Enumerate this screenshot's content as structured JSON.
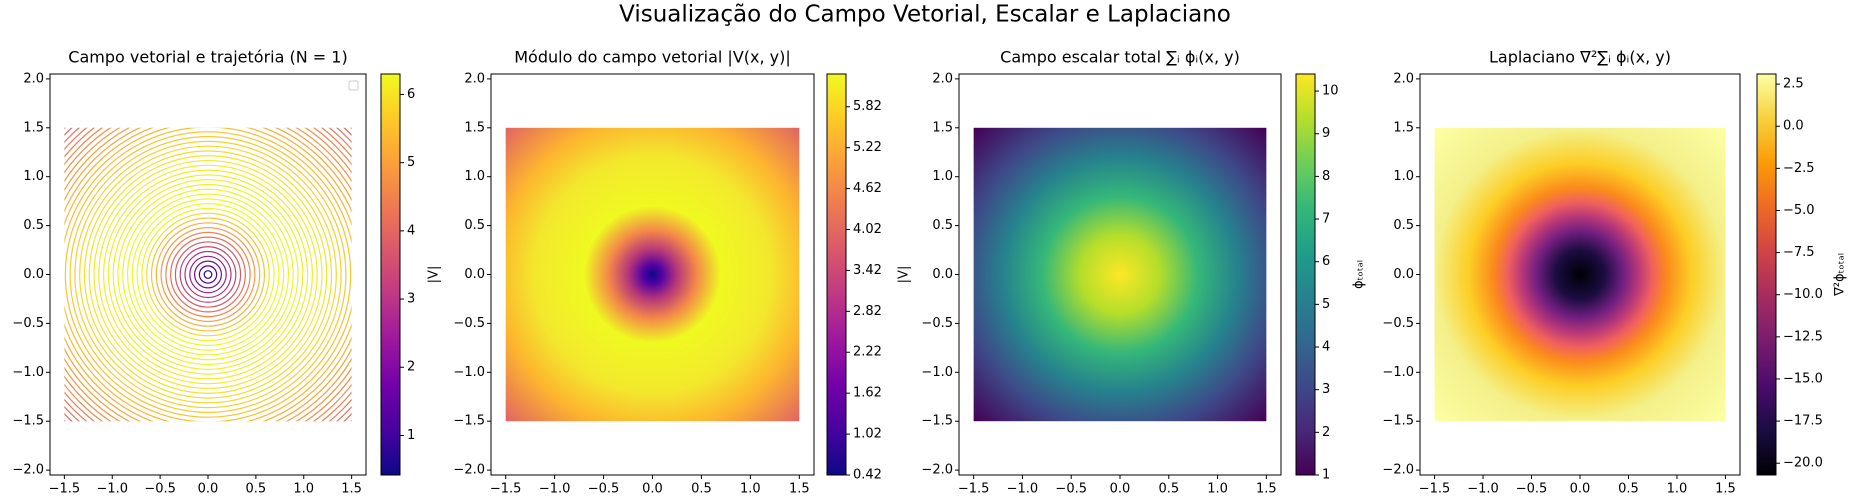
{
  "title": "Visualização do Campo Vetorial, Escalar e Laplaciano",
  "chart_data": [
    {
      "type": "streamplot",
      "title": "Campo vetorial e trajetória (N = 1)",
      "colormap": "plasma",
      "legend": "upper right",
      "xlim": [
        -1.65,
        1.65
      ],
      "ylim": [
        -2.05,
        2.05
      ],
      "xticks": [
        {
          "value": -1.5,
          "label": "−1.5"
        },
        {
          "value": -1.0,
          "label": "−1.0"
        },
        {
          "value": -0.5,
          "label": "−0.5"
        },
        {
          "value": 0,
          "label": "0.0"
        },
        0.5,
        {
          "value": 1,
          "label": "1.0"
        },
        1.5
      ],
      "yticks": [
        {
          "value": -2,
          "label": "−2.0"
        },
        {
          "value": -1.5,
          "label": "−1.5"
        },
        {
          "value": -1,
          "label": "−1.0"
        },
        {
          "value": -0.5,
          "label": "−0.5"
        },
        {
          "value": 0,
          "label": "0.0"
        },
        0.5,
        {
          "value": 1,
          "label": "1.0"
        },
        1.5,
        {
          "value": 2,
          "label": "2.0"
        }
      ],
      "colorbar": {
        "label": "|V|",
        "lim": [
          0.42,
          6.3
        ],
        "ticks": [
          1,
          2,
          3,
          4,
          5,
          6
        ]
      }
    },
    {
      "type": "heatmap",
      "title": "Módulo do campo vetorial |V(x, y)|",
      "colormap": "plasma",
      "xlim": [
        -1.65,
        1.65
      ],
      "ylim": [
        -2.05,
        2.05
      ],
      "xticks": [
        {
          "value": -1.5,
          "label": "−1.5"
        },
        {
          "value": -1.0,
          "label": "−1.0"
        },
        {
          "value": -0.5,
          "label": "−0.5"
        },
        {
          "value": 0,
          "label": "0.0"
        },
        0.5,
        {
          "value": 1,
          "label": "1.0"
        },
        1.5
      ],
      "yticks": [
        {
          "value": -2,
          "label": "−2.0"
        },
        {
          "value": -1.5,
          "label": "−1.5"
        },
        {
          "value": -1,
          "label": "−1.0"
        },
        {
          "value": -0.5,
          "label": "−0.5"
        },
        {
          "value": 0,
          "label": "0.0"
        },
        0.5,
        {
          "value": 1,
          "label": "1.0"
        },
        1.5,
        {
          "value": 2,
          "label": "2.0"
        }
      ],
      "colorbar": {
        "label": "|V|",
        "lim": [
          0.42,
          6.3
        ],
        "ticks": [
          0.42,
          1.02,
          1.62,
          2.22,
          2.82,
          3.42,
          4.02,
          4.62,
          5.22,
          5.82
        ]
      }
    },
    {
      "type": "heatmap",
      "title": "Campo escalar total ∑ᵢ ϕᵢ(x, y)",
      "colormap": "viridis",
      "xlim": [
        -1.65,
        1.65
      ],
      "ylim": [
        -2.05,
        2.05
      ],
      "xticks": [
        {
          "value": -1.5,
          "label": "−1.5"
        },
        {
          "value": -1.0,
          "label": "−1.0"
        },
        {
          "value": -0.5,
          "label": "−0.5"
        },
        {
          "value": 0,
          "label": "0.0"
        },
        0.5,
        {
          "value": 1,
          "label": "1.0"
        },
        1.5
      ],
      "yticks": [
        {
          "value": -2,
          "label": "−2.0"
        },
        {
          "value": -1.5,
          "label": "−1.5"
        },
        {
          "value": -1,
          "label": "−1.0"
        },
        {
          "value": -0.5,
          "label": "−0.5"
        },
        {
          "value": 0,
          "label": "0.0"
        },
        0.5,
        {
          "value": 1,
          "label": "1.0"
        },
        1.5,
        {
          "value": 2,
          "label": "2.0"
        }
      ],
      "colorbar": {
        "label": "ϕₜₒₜₐₗ",
        "lim": [
          1,
          10.4
        ],
        "ticks": [
          1,
          2,
          3,
          4,
          5,
          6,
          7,
          8,
          9,
          10
        ]
      }
    },
    {
      "type": "heatmap",
      "title": "Laplaciano ∇²∑ᵢ ϕᵢ(x, y)",
      "colormap": "inferno",
      "xlim": [
        -1.65,
        1.65
      ],
      "ylim": [
        -2.05,
        2.05
      ],
      "xticks": [
        {
          "value": -1.5,
          "label": "−1.5"
        },
        {
          "value": -1.0,
          "label": "−1.0"
        },
        {
          "value": -0.5,
          "label": "−0.5"
        },
        {
          "value": 0,
          "label": "0.0"
        },
        0.5,
        {
          "value": 1,
          "label": "1.0"
        },
        1.5
      ],
      "yticks": [
        {
          "value": -2,
          "label": "−2.0"
        },
        {
          "value": -1.5,
          "label": "−1.5"
        },
        {
          "value": -1,
          "label": "−1.0"
        },
        {
          "value": -0.5,
          "label": "−0.5"
        },
        {
          "value": 0,
          "label": "0.0"
        },
        0.5,
        {
          "value": 1,
          "label": "1.0"
        },
        1.5,
        {
          "value": 2,
          "label": "2.0"
        }
      ],
      "colorbar": {
        "label": "∇²ϕₜₒₜₐₗ",
        "lim": [
          -20.7,
          3.1
        ],
        "ticks": [
          2.5,
          {
            "value": 0,
            "label": "0.0"
          },
          {
            "value": -2.5,
            "label": "−2.5"
          },
          {
            "value": -5,
            "label": "−5.0"
          },
          {
            "value": -7.5,
            "label": "−7.5"
          },
          {
            "value": -10,
            "label": "−10.0"
          },
          {
            "value": -12.5,
            "label": "−12.5"
          },
          {
            "value": -15,
            "label": "−15.0"
          },
          {
            "value": -17.5,
            "label": "−17.5"
          },
          {
            "value": -20,
            "label": "−20.0"
          }
        ]
      }
    }
  ]
}
